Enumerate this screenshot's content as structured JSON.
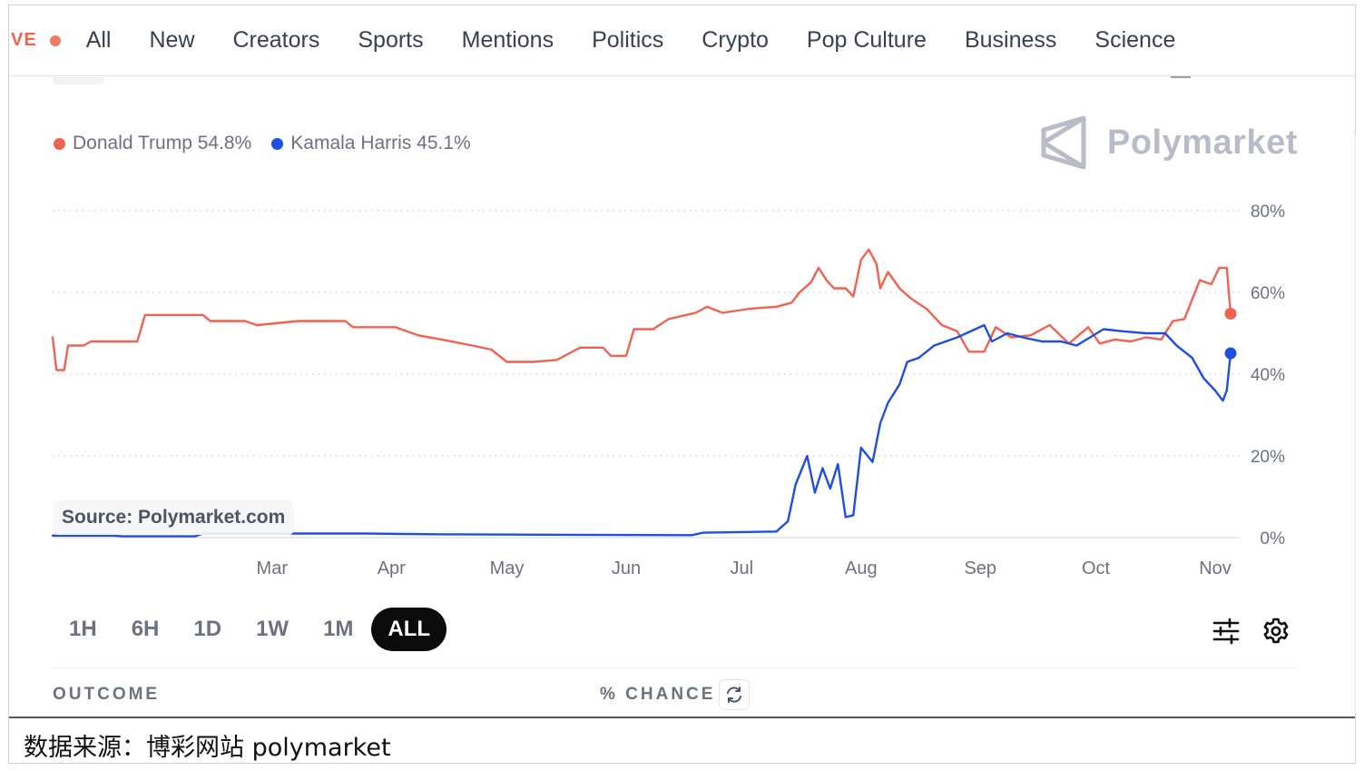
{
  "nav": {
    "live_label": "VE",
    "items": [
      "All",
      "New",
      "Creators",
      "Sports",
      "Mentions",
      "Politics",
      "Crypto",
      "Pop Culture",
      "Business",
      "Science"
    ]
  },
  "legend": {
    "trump": "Donald Trump 54.8%",
    "harris": "Kamala Harris 45.1%"
  },
  "brand": {
    "name": "Polymarket",
    "color": "#b8bcc8"
  },
  "source_badge": "Source: Polymarket.com",
  "ranges": {
    "items": [
      "1H",
      "6H",
      "1D",
      "1W",
      "1M",
      "ALL"
    ],
    "active": "ALL"
  },
  "outcome_header": {
    "outcome": "OUTCOME",
    "chance": "% CHANCE"
  },
  "caption": "数据来源：博彩网站 polymarket",
  "colors": {
    "trump": "#ef6351",
    "harris": "#1e4fe0",
    "grid": "#cfd3d8",
    "axis_text": "#6b7280"
  },
  "icons": {
    "filter": "sliders-icon",
    "settings": "gear-icon",
    "refresh": "refresh-icon",
    "brand": "polymarket-logo-icon"
  },
  "chart_data": {
    "type": "line",
    "title": "",
    "xlabel": "",
    "ylabel": "",
    "x_ticks": [
      "Mar",
      "Apr",
      "May",
      "Jun",
      "Jul",
      "Aug",
      "Sep",
      "Oct",
      "Nov"
    ],
    "y_ticks": [
      "0%",
      "20%",
      "40%",
      "60%",
      "80%"
    ],
    "ylim": [
      0,
      80
    ],
    "xlim": [
      "2024-01-04",
      "2024-11-05"
    ],
    "grid": true,
    "legend_position": "top-left",
    "series": [
      {
        "name": "Donald Trump",
        "color": "#ef6351",
        "end_value": 54.8,
        "points": [
          [
            "2024-01-04",
            49
          ],
          [
            "2024-01-05",
            41
          ],
          [
            "2024-01-07",
            41
          ],
          [
            "2024-01-08",
            47
          ],
          [
            "2024-01-12",
            47
          ],
          [
            "2024-01-14",
            48
          ],
          [
            "2024-01-20",
            48
          ],
          [
            "2024-01-26",
            48
          ],
          [
            "2024-01-28",
            54.5
          ],
          [
            "2024-02-12",
            54.5
          ],
          [
            "2024-02-14",
            53
          ],
          [
            "2024-02-23",
            53
          ],
          [
            "2024-02-26",
            52
          ],
          [
            "2024-03-08",
            53
          ],
          [
            "2024-03-20",
            53
          ],
          [
            "2024-03-22",
            51.5
          ],
          [
            "2024-04-02",
            51.5
          ],
          [
            "2024-04-08",
            49.5
          ],
          [
            "2024-04-14",
            48.5
          ],
          [
            "2024-04-22",
            47
          ],
          [
            "2024-04-27",
            46
          ],
          [
            "2024-05-01",
            43
          ],
          [
            "2024-05-08",
            43
          ],
          [
            "2024-05-14",
            43.5
          ],
          [
            "2024-05-20",
            46.5
          ],
          [
            "2024-05-26",
            46.5
          ],
          [
            "2024-05-28",
            44.5
          ],
          [
            "2024-06-01",
            44.5
          ],
          [
            "2024-06-03",
            51
          ],
          [
            "2024-06-08",
            51
          ],
          [
            "2024-06-12",
            53.5
          ],
          [
            "2024-06-19",
            55
          ],
          [
            "2024-06-22",
            56.5
          ],
          [
            "2024-06-26",
            55
          ],
          [
            "2024-07-03",
            56
          ],
          [
            "2024-07-10",
            56.5
          ],
          [
            "2024-07-14",
            57.5
          ],
          [
            "2024-07-16",
            60
          ],
          [
            "2024-07-19",
            62.5
          ],
          [
            "2024-07-21",
            66
          ],
          [
            "2024-07-23",
            63
          ],
          [
            "2024-07-25",
            61
          ],
          [
            "2024-07-28",
            61
          ],
          [
            "2024-07-30",
            59
          ],
          [
            "2024-08-01",
            68
          ],
          [
            "2024-08-03",
            70.5
          ],
          [
            "2024-08-05",
            67
          ],
          [
            "2024-08-06",
            61
          ],
          [
            "2024-08-08",
            65
          ],
          [
            "2024-08-11",
            61
          ],
          [
            "2024-08-14",
            58.5
          ],
          [
            "2024-08-18",
            56
          ],
          [
            "2024-08-22",
            52
          ],
          [
            "2024-08-26",
            50.5
          ],
          [
            "2024-08-29",
            45.5
          ],
          [
            "2024-09-02",
            45.5
          ],
          [
            "2024-09-05",
            51.5
          ],
          [
            "2024-09-09",
            49
          ],
          [
            "2024-09-14",
            49.5
          ],
          [
            "2024-09-19",
            52
          ],
          [
            "2024-09-24",
            47.5
          ],
          [
            "2024-09-29",
            51.5
          ],
          [
            "2024-10-02",
            47.5
          ],
          [
            "2024-10-06",
            48.5
          ],
          [
            "2024-10-10",
            48
          ],
          [
            "2024-10-14",
            49
          ],
          [
            "2024-10-18",
            48.5
          ],
          [
            "2024-10-21",
            53
          ],
          [
            "2024-10-24",
            53.5
          ],
          [
            "2024-10-28",
            63
          ],
          [
            "2024-10-31",
            62
          ],
          [
            "2024-11-02",
            66
          ],
          [
            "2024-11-04",
            66
          ],
          [
            "2024-11-05",
            54.8
          ]
        ]
      },
      {
        "name": "Kamala Harris",
        "color": "#1e4fe0",
        "end_value": 45.1,
        "points": [
          [
            "2024-01-04",
            0.5
          ],
          [
            "2024-01-20",
            0.5
          ],
          [
            "2024-01-22",
            0.3
          ],
          [
            "2024-02-10",
            0.3
          ],
          [
            "2024-02-12",
            1
          ],
          [
            "2024-03-25",
            1
          ],
          [
            "2024-04-15",
            0.8
          ],
          [
            "2024-05-18",
            0.7
          ],
          [
            "2024-06-18",
            0.6
          ],
          [
            "2024-06-21",
            1.2
          ],
          [
            "2024-07-10",
            1.5
          ],
          [
            "2024-07-13",
            4
          ],
          [
            "2024-07-15",
            13
          ],
          [
            "2024-07-18",
            20
          ],
          [
            "2024-07-20",
            11
          ],
          [
            "2024-07-22",
            17
          ],
          [
            "2024-07-24",
            12
          ],
          [
            "2024-07-26",
            18
          ],
          [
            "2024-07-28",
            5
          ],
          [
            "2024-07-30",
            5.5
          ],
          [
            "2024-08-01",
            22
          ],
          [
            "2024-08-04",
            18.5
          ],
          [
            "2024-08-06",
            28
          ],
          [
            "2024-08-08",
            33
          ],
          [
            "2024-08-11",
            37.5
          ],
          [
            "2024-08-13",
            43
          ],
          [
            "2024-08-16",
            44
          ],
          [
            "2024-08-20",
            47
          ],
          [
            "2024-08-26",
            49
          ],
          [
            "2024-09-02",
            52
          ],
          [
            "2024-09-04",
            48
          ],
          [
            "2024-09-08",
            50
          ],
          [
            "2024-09-12",
            49
          ],
          [
            "2024-09-17",
            48
          ],
          [
            "2024-09-22",
            48
          ],
          [
            "2024-09-26",
            47
          ],
          [
            "2024-10-03",
            51
          ],
          [
            "2024-10-08",
            50.5
          ],
          [
            "2024-10-14",
            50
          ],
          [
            "2024-10-19",
            50
          ],
          [
            "2024-10-22",
            47
          ],
          [
            "2024-10-26",
            44
          ],
          [
            "2024-10-29",
            39
          ],
          [
            "2024-11-01",
            36
          ],
          [
            "2024-11-03",
            33.5
          ],
          [
            "2024-11-04",
            36
          ],
          [
            "2024-11-05",
            45.1
          ]
        ]
      }
    ]
  }
}
